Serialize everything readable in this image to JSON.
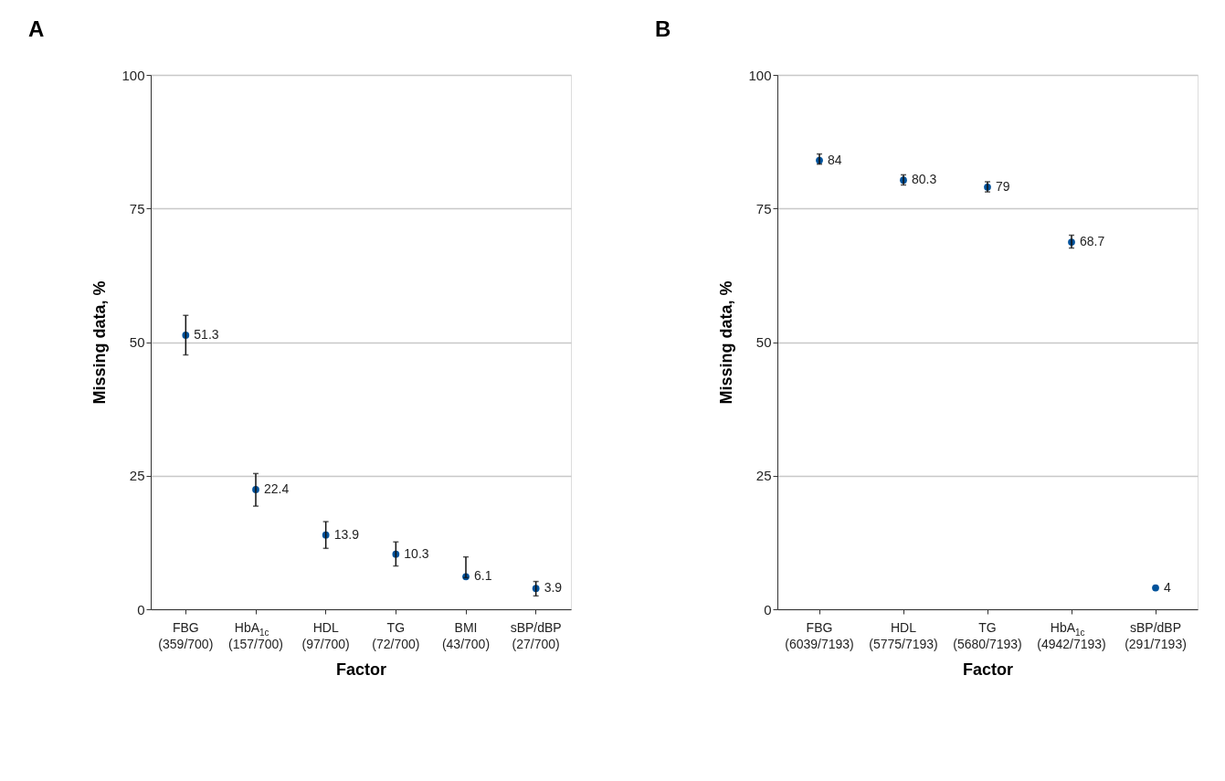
{
  "chart_data": [
    {
      "type": "scatter",
      "title": "A",
      "xlabel": "Factor",
      "ylabel": "Missing data, %",
      "categories": [
        "FBG\n(359/700)",
        "HbA$_{1c}$\n(157/700)",
        "HDL\n(97/700)",
        "TG\n(72/700)",
        "BMI\n(43/700)",
        "sBP/dBP\n(27/700)"
      ],
      "series": [
        {
          "color": "#00529b",
          "values": [
            51.3,
            22.4,
            13.9,
            10.3,
            6.1,
            3.9
          ],
          "errors": [
            [
              47.6,
              55.0
            ],
            [
              19.3,
              25.4
            ],
            [
              11.4,
              16.4
            ],
            [
              8.1,
              12.6
            ],
            [
              5.9,
              9.8
            ],
            [
              2.5,
              5.2
            ]
          ]
        }
      ],
      "ylim": [
        0,
        100
      ],
      "yticks": [
        0,
        25,
        50,
        75,
        100
      ],
      "grid": "y",
      "data_labels": true,
      "marker": "circle"
    },
    {
      "type": "scatter",
      "title": "B",
      "xlabel": "Factor",
      "ylabel": "Missing data, %",
      "categories": [
        "FBG\n(6039/7193)",
        "HDL\n(5775/7193)",
        "TG\n(5680/7193)",
        "HbA$_{1c}$\n(4942/7193)",
        "sBP/dBP\n(291/7193)"
      ],
      "series": [
        {
          "color": "#00529b",
          "values": [
            84,
            80.3,
            79,
            68.7,
            4
          ],
          "errors": [
            [
              83.3,
              85.2
            ],
            [
              79.4,
              81.3
            ],
            [
              78.1,
              80.0
            ],
            [
              67.6,
              70.0
            ],
            null
          ]
        }
      ],
      "ylim": [
        0,
        100
      ],
      "yticks": [
        0,
        25,
        50,
        75,
        100
      ],
      "grid": "y",
      "data_labels": true,
      "marker": "circle"
    }
  ]
}
